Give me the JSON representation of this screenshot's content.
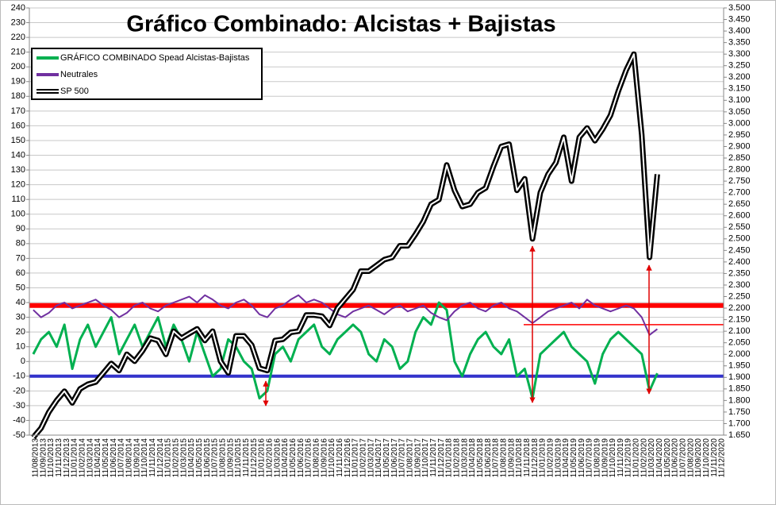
{
  "chart_data": {
    "type": "line",
    "title": "Gráfico Combinado: Alcistas + Bajistas",
    "categories": [
      "11/08/2013",
      "11/09/2013",
      "11/10/2013",
      "11/11/2013",
      "11/12/2013",
      "11/01/2014",
      "11/02/2014",
      "11/03/2014",
      "11/04/2014",
      "11/05/2014",
      "11/06/2014",
      "11/07/2014",
      "11/08/2014",
      "11/09/2014",
      "11/10/2014",
      "11/11/2014",
      "11/12/2014",
      "11/01/2015",
      "11/02/2015",
      "11/03/2015",
      "11/04/2015",
      "11/05/2015",
      "11/06/2015",
      "11/07/2015",
      "11/08/2015",
      "11/09/2015",
      "11/10/2015",
      "11/11/2015",
      "11/12/2015",
      "11/01/2016",
      "11/02/2016",
      "11/03/2016",
      "11/04/2016",
      "11/05/2016",
      "11/06/2016",
      "11/07/2016",
      "11/08/2016",
      "11/09/2016",
      "11/10/2016",
      "11/11/2016",
      "11/12/2016",
      "11/01/2017",
      "11/02/2017",
      "11/03/2017",
      "11/04/2017",
      "11/05/2017",
      "11/06/2017",
      "11/07/2017",
      "11/08/2017",
      "11/09/2017",
      "11/10/2017",
      "11/11/2017",
      "11/12/2017",
      "11/01/2018",
      "11/02/2018",
      "11/03/2018",
      "11/04/2018",
      "11/05/2018",
      "11/06/2018",
      "11/07/2018",
      "11/08/2018",
      "11/09/2018",
      "11/10/2018",
      "11/11/2018",
      "11/12/2018",
      "11/01/2019",
      "11/02/2019",
      "11/03/2019",
      "11/04/2019",
      "11/05/2019",
      "11/06/2019",
      "11/07/2019",
      "11/08/2019",
      "11/09/2019",
      "11/10/2019",
      "11/11/2019",
      "11/12/2019",
      "11/01/2020",
      "11/02/2020",
      "11/03/2020",
      "11/04/2020",
      "11/05/2020",
      "11/06/2020",
      "11/07/2020",
      "11/08/2020",
      "11/09/2020",
      "11/10/2020",
      "11/11/2020",
      "11/12/2020"
    ],
    "series": [
      {
        "name": "GRÁFICO COMBINADO Spead Alcistas-Bajistas",
        "color": "#00b050",
        "values": [
          5,
          15,
          20,
          10,
          25,
          -5,
          15,
          25,
          10,
          20,
          30,
          5,
          15,
          25,
          10,
          20,
          30,
          10,
          25,
          15,
          0,
          20,
          5,
          -10,
          -5,
          15,
          10,
          0,
          -5,
          -25,
          -20,
          5,
          10,
          0,
          15,
          20,
          25,
          10,
          5,
          15,
          20,
          25,
          20,
          5,
          0,
          15,
          10,
          -5,
          0,
          20,
          30,
          25,
          40,
          35,
          0,
          -10,
          5,
          15,
          20,
          10,
          5,
          15,
          -10,
          -5,
          -25,
          5,
          10,
          15,
          20,
          10,
          5,
          0,
          -15,
          5,
          15,
          20,
          15,
          10,
          5,
          -20,
          -8,
          null,
          null,
          null,
          null,
          null,
          null,
          null,
          null
        ]
      },
      {
        "name": "Neutrales",
        "color": "#7030a0",
        "values": [
          35,
          30,
          33,
          38,
          40,
          36,
          38,
          40,
          42,
          38,
          35,
          30,
          33,
          38,
          40,
          36,
          34,
          38,
          40,
          42,
          44,
          40,
          45,
          42,
          38,
          36,
          40,
          42,
          38,
          32,
          30,
          36,
          38,
          42,
          45,
          40,
          42,
          40,
          36,
          32,
          30,
          34,
          36,
          38,
          35,
          32,
          36,
          38,
          34,
          36,
          38,
          33,
          30,
          28,
          34,
          38,
          40,
          36,
          34,
          38,
          40,
          36,
          34,
          30,
          26,
          30,
          34,
          36,
          38,
          40,
          36,
          42,
          38,
          36,
          34,
          36,
          38,
          36,
          30,
          18,
          22,
          null,
          null,
          null,
          null,
          null,
          null,
          null,
          null
        ]
      },
      {
        "name": "SP 500",
        "color": "#000000",
        "axis": "y2",
        "values": [
          1640,
          1680,
          1750,
          1800,
          1840,
          1790,
          1850,
          1870,
          1880,
          1920,
          1960,
          1930,
          2000,
          1970,
          2015,
          2070,
          2060,
          2000,
          2100,
          2070,
          2090,
          2110,
          2060,
          2100,
          1970,
          1920,
          2080,
          2080,
          2040,
          1940,
          1930,
          2060,
          2065,
          2095,
          2100,
          2170,
          2170,
          2165,
          2125,
          2200,
          2240,
          2280,
          2360,
          2360,
          2385,
          2410,
          2420,
          2470,
          2470,
          2520,
          2575,
          2650,
          2670,
          2820,
          2710,
          2640,
          2650,
          2700,
          2720,
          2815,
          2900,
          2910,
          2710,
          2760,
          2500,
          2700,
          2780,
          2830,
          2940,
          2750,
          2940,
          2980,
          2925,
          2975,
          3035,
          3140,
          3230,
          3300,
          2950,
          2420,
          2780,
          null,
          null,
          null,
          null,
          null,
          null,
          null,
          null
        ]
      }
    ],
    "ylim": [
      -50,
      240
    ],
    "yticks": [
      -50,
      -40,
      -30,
      -20,
      -10,
      0,
      10,
      20,
      30,
      40,
      50,
      60,
      70,
      80,
      90,
      100,
      110,
      120,
      130,
      140,
      150,
      160,
      170,
      180,
      190,
      200,
      210,
      220,
      230,
      240
    ],
    "y2lim": [
      1650,
      3500
    ],
    "y2ticks": [
      {
        "value": 1650,
        "label": "1.650"
      },
      {
        "value": 1700,
        "label": "1.700"
      },
      {
        "value": 1750,
        "label": "1.750"
      },
      {
        "value": 1800,
        "label": "1.800"
      },
      {
        "value": 1850,
        "label": "1.850"
      },
      {
        "value": 1900,
        "label": "1.900"
      },
      {
        "value": 1950,
        "label": "1.950"
      },
      {
        "value": 2000,
        "label": "2.000"
      },
      {
        "value": 2050,
        "label": "2.050"
      },
      {
        "value": 2100,
        "label": "2.100"
      },
      {
        "value": 2150,
        "label": "2.150"
      },
      {
        "value": 2200,
        "label": "2.200"
      },
      {
        "value": 2250,
        "label": "2.250"
      },
      {
        "value": 2300,
        "label": "2.300"
      },
      {
        "value": 2350,
        "label": "2.350"
      },
      {
        "value": 2400,
        "label": "2.400"
      },
      {
        "value": 2450,
        "label": "2.450"
      },
      {
        "value": 2500,
        "label": "2.500"
      },
      {
        "value": 2550,
        "label": "2.550"
      },
      {
        "value": 2600,
        "label": "2.600"
      },
      {
        "value": 2650,
        "label": "2.650"
      },
      {
        "value": 2700,
        "label": "2.700"
      },
      {
        "value": 2750,
        "label": "2.750"
      },
      {
        "value": 2800,
        "label": "2.800"
      },
      {
        "value": 2850,
        "label": "2.850"
      },
      {
        "value": 2900,
        "label": "2.900"
      },
      {
        "value": 2950,
        "label": "2.950"
      },
      {
        "value": 3000,
        "label": "3.000"
      },
      {
        "value": 3050,
        "label": "3.050"
      },
      {
        "value": 3100,
        "label": "3.100"
      },
      {
        "value": 3150,
        "label": "3.150"
      },
      {
        "value": 3200,
        "label": "3.200"
      },
      {
        "value": 3250,
        "label": "3.250"
      },
      {
        "value": 3300,
        "label": "3.300"
      },
      {
        "value": 3350,
        "label": "3.350"
      },
      {
        "value": 3400,
        "label": "3.400"
      },
      {
        "value": 3450,
        "label": "3.450"
      },
      {
        "value": 3500,
        "label": "3.500"
      }
    ],
    "reference_lines": [
      {
        "value": 38,
        "color": "#ff0000"
      },
      {
        "value": -10,
        "color": "#3333cc"
      },
      {
        "value": 25,
        "color": "#ff0000"
      }
    ],
    "grid": true,
    "legend": "upper left"
  }
}
